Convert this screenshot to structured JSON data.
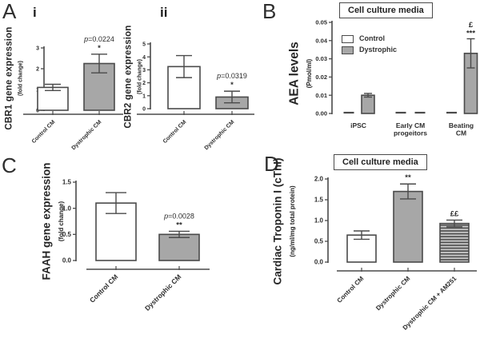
{
  "figure": {
    "panels": {
      "A": {
        "label": "A",
        "sub_i": "i",
        "sub_ii": "ii"
      },
      "B": {
        "label": "B"
      },
      "C": {
        "label": "C"
      },
      "D": {
        "label": "D"
      }
    }
  },
  "colors": {
    "control_fill": "#ffffff",
    "dystrophic_fill": "#a7a7a7",
    "hatch_base": "#c6c6c6",
    "hatch_line": "#4a4a4a",
    "border": "#4a4a4a",
    "text": "#2d2d2d"
  },
  "chart_data": [
    {
      "id": "Ai",
      "type": "bar",
      "ylabel": "CBR1 gene expression",
      "ylabel_sub": "(fold change)",
      "categories": [
        "Control CM",
        "Dystrophic CM"
      ],
      "values": [
        1.1,
        2.25
      ],
      "errors": [
        0.15,
        0.45
      ],
      "bar_styles": [
        "control",
        "dystrophic"
      ],
      "yticks": [
        "0",
        "1",
        "2",
        "3"
      ],
      "ylim": [
        0,
        3
      ],
      "annotations": [
        {
          "bar": 1,
          "lines": [
            "p=0.0224",
            "*"
          ]
        }
      ]
    },
    {
      "id": "Aii",
      "type": "bar",
      "ylabel": "CBR2 gene expression",
      "ylabel_sub": "(fold change)",
      "categories": [
        "Control CM",
        "Dystrophic CM"
      ],
      "values": [
        3.25,
        0.9
      ],
      "errors": [
        0.85,
        0.45
      ],
      "bar_styles": [
        "control",
        "dystrophic"
      ],
      "yticks": [
        "0",
        "1",
        "2",
        "3",
        "4",
        "5"
      ],
      "ylim": [
        0,
        5
      ],
      "annotations": [
        {
          "bar": 1,
          "lines": [
            "p=0.0319",
            "*"
          ]
        }
      ]
    },
    {
      "id": "B",
      "type": "grouped-bar",
      "header": "Cell culture media",
      "ylabel": "AEA levels",
      "ylabel_sub": "(Pmol/ml)",
      "categories": [
        "iPSC",
        "Early CM\nprogeitors",
        "Beating\nCM"
      ],
      "series": [
        {
          "name": "Control",
          "style": "control",
          "values": [
            0,
            0,
            0
          ],
          "errors": [
            0,
            0,
            0
          ]
        },
        {
          "name": "Dystrophic",
          "style": "dystrophic",
          "values": [
            0.01,
            0,
            0.033
          ],
          "errors": [
            0.001,
            0,
            0.008
          ]
        }
      ],
      "yticks": [
        "0.00",
        "0.01",
        "0.02",
        "0.03",
        "0.04",
        "0.05"
      ],
      "ylim": [
        0,
        0.05
      ],
      "legend_position": "upper-left",
      "annotations": [
        {
          "group": 2,
          "series": 1,
          "lines": [
            "£",
            "***"
          ]
        }
      ]
    },
    {
      "id": "C",
      "type": "bar",
      "ylabel": "FAAH gene expression",
      "ylabel_sub": "(fold change)",
      "categories": [
        "Control CM",
        "Dystrophic CM"
      ],
      "values": [
        1.1,
        0.5
      ],
      "errors": [
        0.2,
        0.06
      ],
      "bar_styles": [
        "control",
        "dystrophic"
      ],
      "yticks": [
        "0.0",
        "0.5",
        "1.0",
        "1.5"
      ],
      "ylim": [
        0,
        1.5
      ],
      "annotations": [
        {
          "bar": 1,
          "lines": [
            "p=0.0028",
            "**"
          ]
        }
      ]
    },
    {
      "id": "D",
      "type": "bar",
      "header": "Cell culture media",
      "ylabel": "Cardiac Troponin I (cTnI)",
      "ylabel_sub": "(ng/ml/mg total protein)",
      "categories": [
        "Control CM",
        "Dystrophic CM",
        "Dystrophic CM + AM251"
      ],
      "values": [
        0.65,
        1.7,
        0.93
      ],
      "errors": [
        0.1,
        0.18,
        0.08
      ],
      "bar_styles": [
        "control",
        "dystrophic",
        "hatched"
      ],
      "yticks": [
        "0.0",
        "0.5",
        "1.0",
        "1.5",
        "2.0"
      ],
      "ylim": [
        0,
        2
      ],
      "annotations": [
        {
          "bar": 1,
          "lines": [
            "**"
          ]
        },
        {
          "bar": 2,
          "lines": [
            "££"
          ]
        }
      ]
    }
  ]
}
